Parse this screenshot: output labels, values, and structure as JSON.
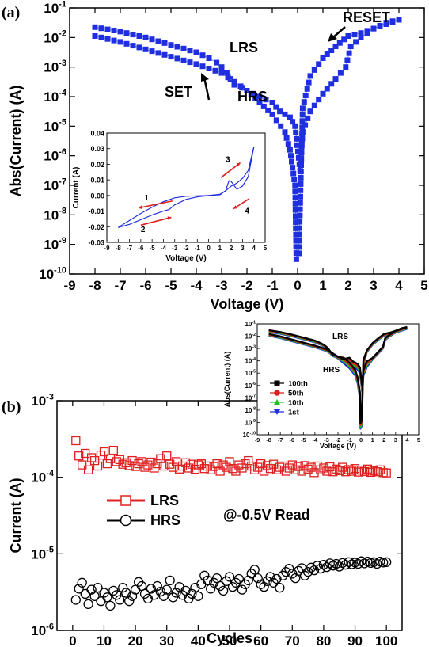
{
  "chart_data": [
    {
      "type": "scatter",
      "panel_label": "(a)",
      "xlabel": "Voltage (V)",
      "ylabel": "Abs(Current) (A)",
      "xlim": [
        -9,
        5
      ],
      "ylim_log10": [
        -10,
        -1
      ],
      "x_ticks": [
        "-9",
        "-8",
        "-7",
        "-6",
        "-5",
        "-4",
        "-3",
        "-2",
        "-1",
        "0",
        "1",
        "2",
        "3",
        "4",
        "5"
      ],
      "y_ticks": [
        {
          "base": "10",
          "exp": "-1"
        },
        {
          "base": "10",
          "exp": "-2"
        },
        {
          "base": "10",
          "exp": "-3"
        },
        {
          "base": "10",
          "exp": "-4"
        },
        {
          "base": "10",
          "exp": "-5"
        },
        {
          "base": "10",
          "exp": "-6"
        },
        {
          "base": "10",
          "exp": "-7"
        },
        {
          "base": "10",
          "exp": "-8"
        },
        {
          "base": "10",
          "exp": "-9"
        },
        {
          "base": "10",
          "exp": "-10"
        }
      ],
      "marker_color": "#1f2fe0",
      "annotations": [
        {
          "text": "LRS",
          "x": -1.1,
          "y_log10": -2.2
        },
        {
          "text": "HRS",
          "x": -1.3,
          "y_log10": -3.9
        },
        {
          "text": "SET",
          "x": -4.3,
          "y_log10": -3.7
        },
        {
          "text": "RESET",
          "x": 3.3,
          "y_log10": -1.4
        }
      ],
      "series": [
        {
          "name": "HRS branch",
          "points": [
            [
              -8,
              -1.65
            ],
            [
              -7,
              -1.8
            ],
            [
              -6,
              -2.0
            ],
            [
              -5,
              -2.25
            ],
            [
              -4,
              -2.5
            ],
            [
              -3.5,
              -2.7
            ],
            [
              -3.2,
              -2.85
            ],
            [
              -3.0,
              -3.0
            ],
            [
              -2.8,
              -3.2
            ],
            [
              -2.5,
              -3.6
            ],
            [
              -2.2,
              -3.7
            ],
            [
              -2.0,
              -3.8
            ],
            [
              -1.5,
              -4.0
            ],
            [
              -1.0,
              -4.2
            ],
            [
              -0.7,
              -4.5
            ],
            [
              -0.3,
              -4.7
            ],
            [
              -0.1,
              -5.0
            ],
            [
              0.1,
              -6.5
            ],
            [
              0.2,
              -5.2
            ],
            [
              0.5,
              -4.5
            ],
            [
              1.0,
              -3.9
            ],
            [
              1.5,
              -3.4
            ],
            [
              1.9,
              -3.0
            ],
            [
              2.1,
              -2.3
            ],
            [
              2.5,
              -2.0
            ],
            [
              3.0,
              -1.7
            ],
            [
              3.5,
              -1.5
            ],
            [
              4.0,
              -1.4
            ]
          ]
        },
        {
          "name": "LRS branch",
          "points": [
            [
              4.0,
              -1.4
            ],
            [
              3.5,
              -1.55
            ],
            [
              3.0,
              -1.7
            ],
            [
              2.5,
              -1.85
            ],
            [
              2.0,
              -1.95
            ],
            [
              1.5,
              -2.3
            ],
            [
              1.0,
              -2.7
            ],
            [
              0.5,
              -3.3
            ],
            [
              0.2,
              -4.4
            ],
            [
              0.05,
              -9.3
            ],
            [
              -0.05,
              -9.5
            ],
            [
              -0.1,
              -7.0
            ],
            [
              -0.3,
              -5.8
            ],
            [
              -0.5,
              -5.2
            ],
            [
              -1.0,
              -4.6
            ],
            [
              -1.5,
              -4.2
            ],
            [
              -2.0,
              -3.8
            ],
            [
              -2.5,
              -3.5
            ],
            [
              -3.0,
              -3.2
            ],
            [
              -4.0,
              -2.9
            ],
            [
              -5.0,
              -2.65
            ],
            [
              -6.0,
              -2.4
            ],
            [
              -7.0,
              -2.15
            ],
            [
              -8.0,
              -1.95
            ]
          ]
        }
      ],
      "inset": {
        "xlabel": "Voltage (V)",
        "ylabel": "Current (A)",
        "xlim": [
          -9,
          5
        ],
        "ylim": [
          -0.03,
          0.04
        ],
        "x_ticks": [
          "-9",
          "-8",
          "-7",
          "-6",
          "-5",
          "-4",
          "-3",
          "-2",
          "-1",
          "0",
          "1",
          "2",
          "3",
          "4",
          "5"
        ],
        "y_ticks": [
          "0.04",
          "0.03",
          "0.02",
          "0.01",
          "0.00",
          "-0.01",
          "-0.02",
          "-0.03"
        ],
        "line_color": "#1f2fe0",
        "arrow_color": "#e02020",
        "arrow_labels": [
          "1",
          "2",
          "3",
          "4"
        ],
        "loop_upper": [
          [
            -8,
            -0.0205
          ],
          [
            -7,
            -0.016
          ],
          [
            -6,
            -0.0115
          ],
          [
            -5,
            -0.0075
          ],
          [
            -4,
            -0.004
          ],
          [
            -3,
            -0.0015
          ],
          [
            -2,
            -0.0005
          ],
          [
            -1,
            -0.0002
          ],
          [
            0,
            0
          ],
          [
            1,
            0.0008
          ],
          [
            1.5,
            0.003
          ],
          [
            2,
            0.006
          ],
          [
            2.5,
            0.008
          ],
          [
            3,
            0.011
          ],
          [
            3.5,
            0.016
          ],
          [
            4,
            0.031
          ]
        ],
        "loop_lower": [
          [
            4,
            0.031
          ],
          [
            3.5,
            0.012
          ],
          [
            3,
            0.006
          ],
          [
            2.5,
            0.004
          ],
          [
            2,
            0.009
          ],
          [
            1.8,
            0.0095
          ],
          [
            1.5,
            0.003
          ],
          [
            1,
            0.0005
          ],
          [
            0,
            0
          ],
          [
            -1,
            -0.0009
          ],
          [
            -2,
            -0.0025
          ],
          [
            -3,
            -0.006
          ],
          [
            -3.5,
            -0.009
          ],
          [
            -4,
            -0.01
          ],
          [
            -5,
            -0.0125
          ],
          [
            -6,
            -0.0155
          ],
          [
            -7,
            -0.0185
          ],
          [
            -8,
            -0.0205
          ]
        ]
      }
    },
    {
      "type": "scatter",
      "panel_label": "(b)",
      "xlabel": "Cycles",
      "ylabel": "Current (A)",
      "xlim": [
        -5,
        105
      ],
      "ylim_log10": [
        -6,
        -3
      ],
      "x_ticks": [
        "0",
        "10",
        "20",
        "30",
        "40",
        "50",
        "60",
        "70",
        "80",
        "90",
        "100"
      ],
      "y_ticks": [
        {
          "base": "10",
          "exp": "-3"
        },
        {
          "base": "10",
          "exp": "-4"
        },
        {
          "base": "10",
          "exp": "-5"
        },
        {
          "base": "10",
          "exp": "-6"
        }
      ],
      "annotation": "@-0.5V Read",
      "legend": [
        {
          "label": "LRS",
          "color": "#e02020",
          "marker": "square"
        },
        {
          "label": "HRS",
          "color": "#000000",
          "marker": "circle"
        }
      ],
      "series": [
        {
          "name": "LRS",
          "color": "#e02020",
          "values": [
            0.0003,
            0.00019,
            0.000145,
            0.000205,
            0.000125,
            0.00018,
            0.000165,
            0.00014,
            0.000195,
            0.000215,
            0.00015,
            0.000175,
            0.000225,
            0.00016,
            0.00017,
            0.000148,
            0.000155,
            0.000142,
            0.000165,
            0.000138,
            0.00015,
            0.00016,
            0.000135,
            0.000145,
            0.000158,
            0.000132,
            0.00015,
            0.000175,
            0.00014,
            0.00019,
            0.000148,
            0.000135,
            0.00016,
            0.000128,
            0.00014,
            0.000155,
            0.000132,
            0.000148,
            0.000127,
            0.000145,
            0.00015,
            0.00013,
            0.00014,
            0.000125,
            0.000138,
            0.00015,
            0.00012,
            0.000145,
            0.000135,
            0.00016,
            0.00013,
            0.00012,
            0.000145,
            0.000132,
            0.00015,
            0.000165,
            0.00014,
            0.000125,
            0.000135,
            0.00015,
            0.00012,
            0.000142,
            0.00013,
            0.000148,
            0.000125,
            0.000135,
            0.00014,
            0.00012,
            0.000132,
            0.000145,
            0.000125,
            0.000138,
            0.00012,
            0.000142,
            0.000128,
            0.000135,
            0.000115,
            0.00014,
            0.000125,
            0.000132,
            0.00012,
            0.000137,
            0.000118,
            0.000128,
            0.000122,
            0.000135,
            0.000118,
            0.000126,
            0.00012,
            0.00013,
            0.000117,
            0.000124,
            0.000119,
            0.000128,
            0.000116,
            0.000121,
            0.000118,
            0.000125,
            0.000115,
            0.000114
          ]
        },
        {
          "name": "HRS",
          "color": "#000000",
          "values": [
            2.5e-06,
            3.5e-06,
            4.2e-06,
            3e-06,
            2.2e-06,
            3.4e-06,
            2.8e-06,
            3.6e-06,
            2.4e-06,
            3.1e-06,
            2.7e-06,
            2.1e-06,
            3.3e-06,
            2.9e-06,
            2.5e-06,
            3.6e-06,
            3.1e-06,
            2.4e-06,
            2.8e-06,
            3.4e-06,
            4.3e-06,
            3.8e-06,
            3e-06,
            2.6e-06,
            3.5e-06,
            2.9e-06,
            3.8e-06,
            3.2e-06,
            2.8e-06,
            3.4e-06,
            4.5e-06,
            2.7e-06,
            3.1e-06,
            3.7e-06,
            2.9e-06,
            3.3e-06,
            2.6e-06,
            3e-06,
            3.6e-06,
            2.8e-06,
            4e-06,
            5.2e-06,
            4.5e-06,
            3.5e-06,
            4.2e-06,
            4.8e-06,
            3.8e-06,
            3.3e-06,
            4.4e-06,
            5e-06,
            3.7e-06,
            4.2e-06,
            4.7e-06,
            3.4e-06,
            4e-06,
            4.5e-06,
            5.5e-06,
            6.2e-06,
            4.8e-06,
            4e-06,
            3.7e-06,
            4.4e-06,
            5e-06,
            4.2e-06,
            4.7e-06,
            3.6e-06,
            5.2e-06,
            5.8e-06,
            6.4e-06,
            5.5e-06,
            4.8e-06,
            6e-06,
            6.5e-06,
            5.2e-06,
            5.8e-06,
            6.6e-06,
            6.1e-06,
            7e-06,
            6.4e-06,
            7.2e-06,
            6.7e-06,
            7.5e-06,
            7e-06,
            7.4e-06,
            6.8e-06,
            7.6e-06,
            7.2e-06,
            7.8e-06,
            7.3e-06,
            7.7e-06,
            7.4e-06,
            8e-06,
            7.5e-06,
            7.9e-06,
            7.6e-06,
            7.8e-06,
            7.4e-06,
            7.9e-06,
            7.7e-06,
            7.8e-06
          ]
        }
      ],
      "inset": {
        "xlabel": "Voltage (V)",
        "ylabel": "Abs(Current) (A)",
        "xlim": [
          -9,
          5
        ],
        "ylim_log10": [
          -10,
          -1
        ],
        "x_ticks": [
          "-9",
          "-8",
          "-7",
          "-6",
          "-5",
          "-4",
          "-3",
          "-2",
          "-1",
          "0",
          "1",
          "2",
          "3",
          "4",
          "5"
        ],
        "y_ticks": [
          {
            "base": "10",
            "exp": "-1"
          },
          {
            "base": "10",
            "exp": "-2"
          },
          {
            "base": "10",
            "exp": "-3"
          },
          {
            "base": "10",
            "exp": "-4"
          },
          {
            "base": "10",
            "exp": "-5"
          },
          {
            "base": "10",
            "exp": "-6"
          },
          {
            "base": "10",
            "exp": "-7"
          },
          {
            "base": "10",
            "exp": "-8"
          },
          {
            "base": "10",
            "exp": "-9"
          },
          {
            "base": "10",
            "exp": "-10"
          }
        ],
        "labels": [
          {
            "text": "LRS"
          },
          {
            "text": "HRS"
          }
        ],
        "legend": [
          {
            "label": "100th",
            "color": "#000000",
            "marker": "square"
          },
          {
            "label": "50th",
            "color": "#e02020",
            "marker": "circle"
          },
          {
            "label": "10th",
            "color": "#20c020",
            "marker": "triangle-up"
          },
          {
            "label": "1st",
            "color": "#1f2fe0",
            "marker": "triangle-down"
          }
        ]
      }
    }
  ]
}
